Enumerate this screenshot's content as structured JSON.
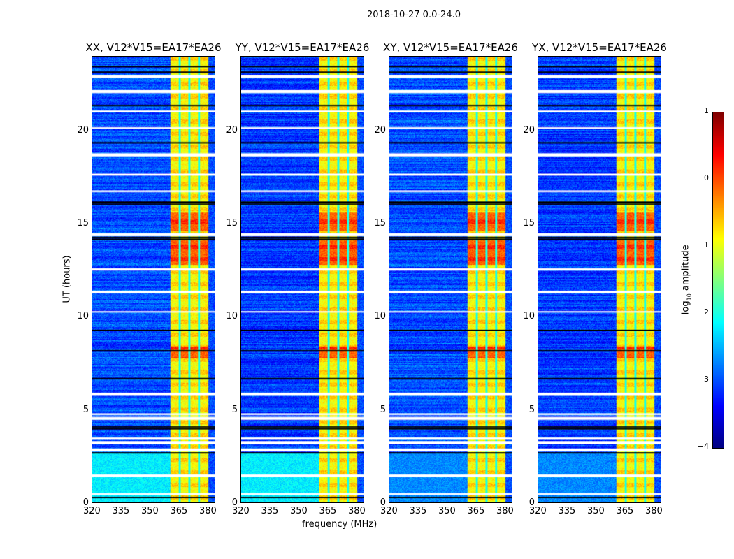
{
  "suptitle": "2018-10-27 0.0-24.0",
  "xlabel": "frequency (MHz)",
  "ylabel": "UT (hours)",
  "colorbar": {
    "label_prefix": "log",
    "label_sub": "10",
    "label_suffix": " amplitude",
    "ticks": [
      "1",
      "0",
      "−1",
      "−2",
      "−3",
      "−4"
    ],
    "range": [
      -4,
      1
    ],
    "colormap": "jet"
  },
  "chart_data": {
    "type": "heatmap",
    "title": "2018-10-27 0.0-24.0",
    "xlabel": "frequency (MHz)",
    "ylabel": "UT (hours)",
    "xlim": [
      320,
      384
    ],
    "ylim": [
      0,
      24
    ],
    "xticks": [
      "320",
      "335",
      "350",
      "365",
      "380"
    ],
    "yticks": [
      "0",
      "5",
      "10",
      "15",
      "20"
    ],
    "colorbar_range": [
      -4,
      1
    ],
    "panels": [
      {
        "title": "XX, V12*V15=EA17*EA26",
        "background_level": -3.0,
        "low_freq_level": -2.2
      },
      {
        "title": "YY, V12*V15=EA17*EA26",
        "background_level": -3.1,
        "low_freq_level": -2.2
      },
      {
        "title": "XY, V12*V15=EA17*EA26",
        "background_level": -3.0,
        "low_freq_level": -2.7
      },
      {
        "title": "YX, V12*V15=EA17*EA26",
        "background_level": -3.1,
        "low_freq_level": -2.7
      }
    ],
    "bright_band_mhz": [
      360.6,
      380.7
    ],
    "band_gaps_mhz": [
      365.7,
      370.7,
      375.8
    ],
    "band_level": -0.9,
    "strong_periods_ut": [
      [
        7.8,
        8.4
      ],
      [
        12.8,
        14.1
      ],
      [
        14.6,
        15.6
      ]
    ],
    "flagged_white_ut": [
      0.5,
      1.5,
      2.9,
      3.3,
      3.5,
      4.6,
      4.8,
      5.9,
      10.3,
      11.4,
      12.6,
      14.5,
      16.8,
      17.7,
      18.8,
      20.2,
      21.1,
      22.2,
      23.0
    ],
    "flagged_black_ut": [
      0.3,
      2.7,
      4.0,
      4.1,
      6.7,
      8.2,
      9.3,
      14.2,
      14.3,
      16.1,
      16.2,
      19.4,
      21.4,
      23.2,
      23.5
    ]
  }
}
